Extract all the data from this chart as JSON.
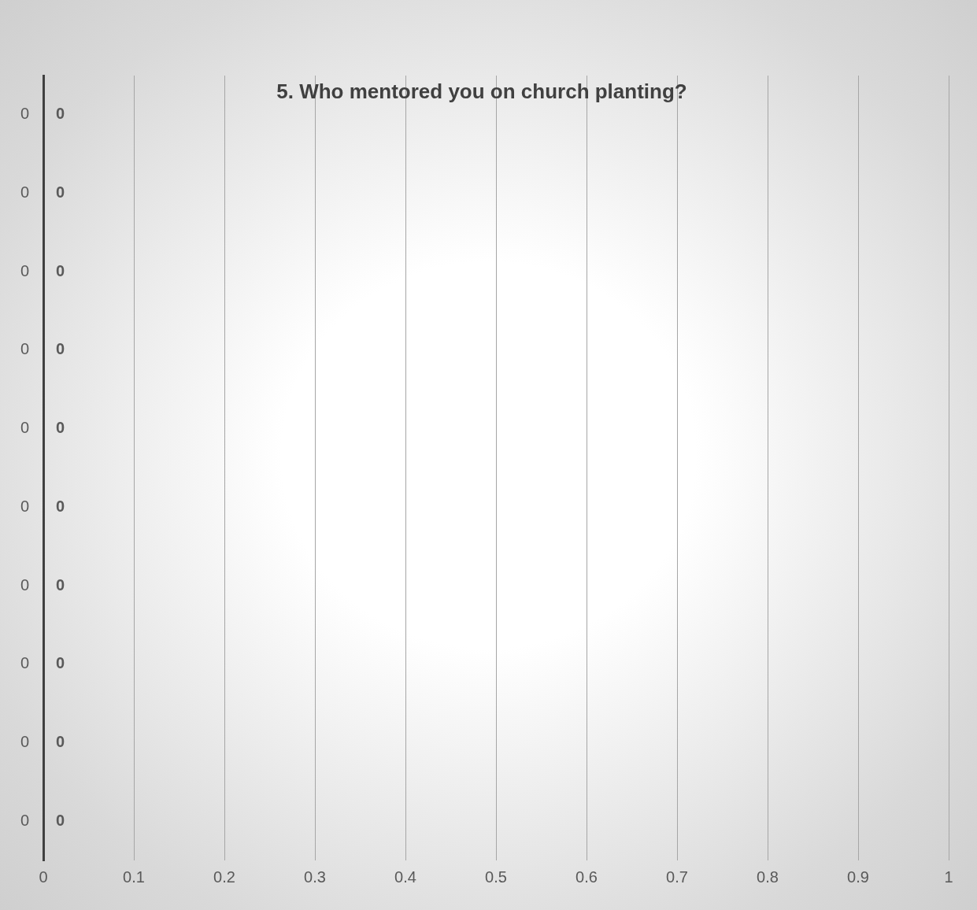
{
  "chart_data": {
    "type": "bar",
    "orientation": "horizontal",
    "title": "5. Who mentored you on church planting?",
    "categories": [
      "0",
      "0",
      "0",
      "0",
      "0",
      "0",
      "0",
      "0",
      "0",
      "0"
    ],
    "values": [
      0,
      0,
      0,
      0,
      0,
      0,
      0,
      0,
      0,
      0
    ],
    "xlim": [
      0,
      1
    ],
    "xticks": [
      0,
      0.1,
      0.2,
      0.3,
      0.4,
      0.5,
      0.6,
      0.7,
      0.8,
      0.9,
      1
    ],
    "grid": "x",
    "data_labels": true,
    "legend": false
  }
}
